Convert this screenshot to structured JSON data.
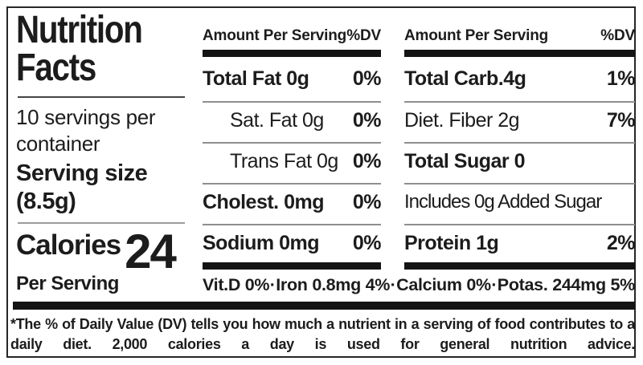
{
  "label": {
    "title_line1": "Nutrition",
    "title_line2": "Facts",
    "servings_per_container": "10 servings per container",
    "serving_size_label": "Serving size",
    "serving_size_value": "(8.5g)",
    "calories_label": "Calories",
    "calories_value": "24",
    "calories_subtitle": "Per Serving"
  },
  "columns": [
    {
      "header": {
        "amount": "Amount Per Serving",
        "dv": "%DV"
      },
      "rows": [
        {
          "name": "Total Fat 0g",
          "dv": "0%"
        },
        {
          "name": "Sat. Fat 0g",
          "dv": "0%"
        },
        {
          "name": "Trans Fat 0g",
          "dv": "0%"
        },
        {
          "name": "Cholest. 0mg",
          "dv": "0%"
        },
        {
          "name": "Sodium 0mg",
          "dv": "0%"
        }
      ]
    },
    {
      "header": {
        "amount": "Amount Per Serving",
        "dv": "%DV"
      },
      "rows": [
        {
          "name": "Total Carb.4g",
          "dv": "1%"
        },
        {
          "name": "Diet. Fiber 2g",
          "dv": "7%"
        },
        {
          "name": "Total Sugar 0",
          "dv": ""
        },
        {
          "name": "Includes 0g Added Sugar",
          "dv": ""
        },
        {
          "name": "Protein 1g",
          "dv": "2%"
        }
      ]
    }
  ],
  "micronutrients": {
    "items": [
      "Vit.D 0%",
      "Iron 0.8mg 4%",
      "Calcium 0%",
      "Potas. 244mg 5%"
    ],
    "separator": "·"
  },
  "footnote": "*The % of Daily Value (DV) tells you how much a nutrient in a serving of food contributes to a daily diet. 2,000 calories a day is used for general nutrition advice.",
  "colors": {
    "ink": "#1c1c1c",
    "bar": "#141414",
    "thin_rule": "#8f8f8f",
    "title_rule": "#434343",
    "calories_rule": "#9b9b9b",
    "background": "#ffffff",
    "border": "#262626"
  }
}
